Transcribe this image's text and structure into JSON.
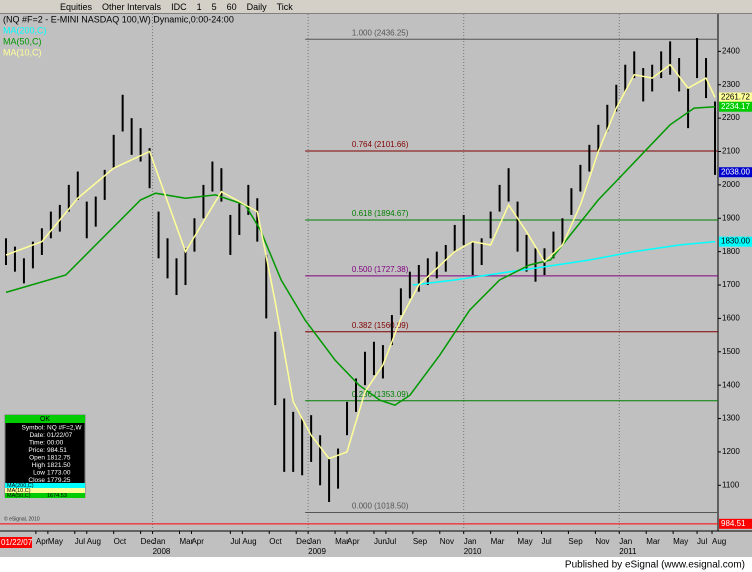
{
  "toolbar": [
    "Equities",
    "Other Intervals",
    "IDC",
    "1",
    "5",
    "60",
    "Daily",
    "Tick"
  ],
  "footer": "Published by eSignal (www.esignal.com)",
  "copyright": "© eSignal, 2010",
  "chart_data": {
    "type": "range-bar",
    "title": "(NQ #F=2 - E-MINI NASDAQ 100,W) Dynamic,0:00-24:00",
    "x": [
      0,
      3,
      6,
      9,
      12,
      15,
      18,
      21,
      24,
      27,
      30,
      33,
      36,
      39,
      42,
      45,
      48,
      51,
      54,
      57,
      60,
      63,
      66,
      69,
      72,
      75,
      78,
      81,
      84,
      87,
      90,
      93,
      96,
      99,
      102,
      105,
      108,
      111,
      114,
      117,
      120,
      123,
      126,
      129,
      132,
      135,
      138,
      141,
      144,
      147,
      150,
      153,
      156,
      159,
      162,
      165,
      168,
      171,
      174,
      177,
      180,
      183,
      186,
      189,
      192,
      195,
      198,
      201,
      204,
      207,
      210,
      213,
      216,
      219,
      222,
      225,
      228,
      231,
      234,
      237
    ],
    "high": [
      1840,
      1815,
      1780,
      1830,
      1870,
      1920,
      1940,
      2000,
      2040,
      1950,
      1965,
      2045,
      2150,
      2270,
      2200,
      2170,
      2110,
      1920,
      1840,
      1780,
      1810,
      1900,
      2000,
      2070,
      2050,
      1910,
      1950,
      2000,
      1960,
      1790,
      1560,
      1360,
      1320,
      1300,
      1310,
      1250,
      1180,
      1210,
      1350,
      1420,
      1500,
      1530,
      1520,
      1610,
      1690,
      1740,
      1760,
      1780,
      1800,
      1820,
      1880,
      1910,
      1830,
      1840,
      1920,
      2000,
      2050,
      1950,
      1850,
      1810,
      1810,
      1860,
      1900,
      1990,
      2060,
      2120,
      2180,
      2240,
      2300,
      2360,
      2400,
      2350,
      2360,
      2400,
      2430,
      2380,
      2290,
      2440,
      2380,
      2250
    ],
    "low": [
      1760,
      1740,
      1705,
      1750,
      1790,
      1840,
      1860,
      1920,
      1955,
      1840,
      1875,
      1955,
      2050,
      2160,
      2090,
      2070,
      1990,
      1780,
      1720,
      1670,
      1700,
      1800,
      1900,
      1980,
      1950,
      1790,
      1850,
      1910,
      1830,
      1600,
      1340,
      1140,
      1140,
      1130,
      1170,
      1100,
      1050,
      1090,
      1250,
      1320,
      1400,
      1430,
      1420,
      1520,
      1610,
      1660,
      1680,
      1700,
      1720,
      1740,
      1800,
      1820,
      1730,
      1760,
      1840,
      1920,
      1950,
      1800,
      1740,
      1710,
      1730,
      1780,
      1820,
      1910,
      1980,
      2040,
      2100,
      2160,
      2220,
      2280,
      2320,
      2250,
      2280,
      2320,
      2330,
      2280,
      2170,
      2320,
      2260,
      2030
    ],
    "color": "#000000",
    "series": [
      {
        "name": "MA(200,C)",
        "color": "#00ffff",
        "x": [
          136,
          150,
          165,
          180,
          195,
          210,
          225,
          237
        ],
        "values": [
          1700,
          1715,
          1735,
          1755,
          1775,
          1800,
          1820,
          1830
        ]
      },
      {
        "name": "MA(50,C)",
        "color": "#009900",
        "x": [
          0,
          20,
          35,
          45,
          50,
          60,
          70,
          80,
          85,
          92,
          100,
          110,
          118,
          125,
          130,
          135,
          145,
          155,
          165,
          175,
          182,
          190,
          198,
          206,
          214,
          222,
          230,
          237
        ],
        "values": [
          1678,
          1730,
          1865,
          1955,
          1975,
          1960,
          1970,
          1940,
          1865,
          1715,
          1595,
          1475,
          1400,
          1355,
          1340,
          1370,
          1490,
          1625,
          1715,
          1760,
          1775,
          1865,
          1955,
          2030,
          2105,
          2180,
          2230,
          2234
        ]
      },
      {
        "name": "MA(10,C)",
        "color": "#ffff99",
        "x": [
          0,
          12,
          24,
          36,
          48,
          60,
          72,
          84,
          90,
          96,
          102,
          108,
          114,
          120,
          126,
          132,
          138,
          144,
          150,
          156,
          162,
          168,
          174,
          180,
          186,
          192,
          198,
          204,
          210,
          216,
          222,
          228,
          234,
          237
        ],
        "values": [
          1790,
          1830,
          1960,
          2050,
          2100,
          1800,
          1980,
          1920,
          1650,
          1350,
          1250,
          1180,
          1200,
          1380,
          1460,
          1600,
          1700,
          1750,
          1800,
          1830,
          1820,
          1940,
          1860,
          1770,
          1820,
          1940,
          2100,
          2230,
          2330,
          2320,
          2360,
          2290,
          2320,
          2262
        ]
      }
    ],
    "fib_start": 100,
    "fib_levels": [
      {
        "label": "1.000 (2436.25)",
        "value": 2436.25,
        "color": "#555555"
      },
      {
        "label": "0.764 (2101.66)",
        "value": 2101.66,
        "color": "#800000"
      },
      {
        "label": "0.618 (1894.67)",
        "value": 1894.67,
        "color": "#008000"
      },
      {
        "label": "0.500 (1727.38)",
        "value": 1727.38,
        "color": "#800080"
      },
      {
        "label": "0.382 (1560.09)",
        "value": 1560.09,
        "color": "#800000"
      },
      {
        "label": "0.236 (1353.09)",
        "value": 1353.09,
        "color": "#008000"
      },
      {
        "label": "0.000 (1018.50)",
        "value": 1018.5,
        "color": "#555555"
      }
    ],
    "price_tags": [
      {
        "value": 2261.72,
        "label": "2261.72",
        "color": "#ffff99"
      },
      {
        "value": 2234.17,
        "label": "2234.17",
        "color": "#00cc00"
      },
      {
        "value": 2038.0,
        "label": "2038.00",
        "color": "#0000cc"
      },
      {
        "value": 1830.0,
        "label": "1830.00",
        "color": "#00ffff"
      },
      {
        "value": 984.51,
        "label": "984.51",
        "color": "#ff0000"
      }
    ],
    "cursor_date": "01/22/07",
    "xlim": [
      -2,
      238
    ],
    "ylim": [
      975,
      2512
    ],
    "yticks": [
      1100,
      1200,
      1300,
      1400,
      1500,
      1600,
      1700,
      1800,
      1900,
      2000,
      2100,
      2200,
      2300,
      2400
    ],
    "xticks": [
      {
        "value": 10,
        "label": "Apr"
      },
      {
        "value": 14,
        "label": "May"
      },
      {
        "value": 23,
        "label": "Jul"
      },
      {
        "value": 27,
        "label": "Aug"
      },
      {
        "value": 36,
        "label": "Oct"
      },
      {
        "value": 45,
        "label": "Dec"
      },
      {
        "value": 49,
        "label": "Jan"
      },
      {
        "value": 58,
        "label": "Mar"
      },
      {
        "value": 62,
        "label": "Apr"
      },
      {
        "value": 75,
        "label": "Jul"
      },
      {
        "value": 79,
        "label": "Aug"
      },
      {
        "value": 88,
        "label": "Oct"
      },
      {
        "value": 97,
        "label": "Dec"
      },
      {
        "value": 101,
        "label": "Jan"
      },
      {
        "value": 110,
        "label": "Mar"
      },
      {
        "value": 114,
        "label": "Apr"
      },
      {
        "value": 123,
        "label": "Jun"
      },
      {
        "value": 127,
        "label": "Jul"
      },
      {
        "value": 136,
        "label": "Sep"
      },
      {
        "value": 145,
        "label": "Nov"
      },
      {
        "value": 153,
        "label": "Jan"
      },
      {
        "value": 162,
        "label": "Mar"
      },
      {
        "value": 171,
        "label": "May"
      },
      {
        "value": 179,
        "label": "Jul"
      },
      {
        "value": 188,
        "label": "Sep"
      },
      {
        "value": 197,
        "label": "Nov"
      },
      {
        "value": 205,
        "label": "Jan"
      },
      {
        "value": 214,
        "label": "Mar"
      },
      {
        "value": 223,
        "label": "May"
      },
      {
        "value": 231,
        "label": "Jul"
      },
      {
        "value": 236,
        "label": "Aug"
      }
    ],
    "years": [
      {
        "value": 49,
        "label": "2008"
      },
      {
        "value": 101,
        "label": "2009"
      },
      {
        "value": 153,
        "label": "2010"
      },
      {
        "value": 205,
        "label": "2011"
      }
    ]
  },
  "data_window": {
    "header": "OK",
    "rows": [
      [
        "Symbol:",
        "NQ #F=2,W"
      ],
      [
        "Date:",
        "01/22/07"
      ],
      [
        "Time:",
        "00:00"
      ],
      [
        "Price:",
        "984.51"
      ],
      [
        "Open",
        "1812.75"
      ],
      [
        "High",
        "1821.50"
      ],
      [
        "Low",
        "1773.00"
      ],
      [
        "Close",
        "1779.25"
      ]
    ],
    "ma_rows": [
      [
        "MA(200,C)",
        ""
      ],
      [
        "MA(10,C)",
        ""
      ],
      [
        "MA(50,C)",
        "1674.53"
      ]
    ]
  }
}
